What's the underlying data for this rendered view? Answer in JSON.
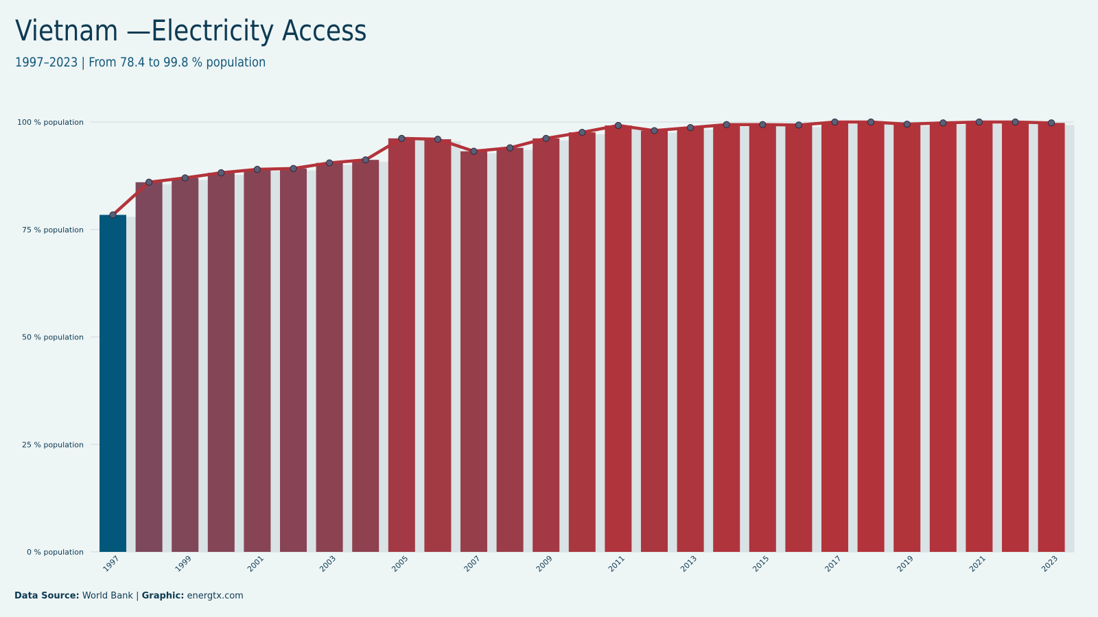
{
  "header": {
    "title": "Vietnam —Electricity Access",
    "subtitle": "1997–2023 | From 78.4 to 99.8 % population"
  },
  "footer": {
    "source_label": "Data Source:",
    "source_value": "World Bank",
    "separator": "|",
    "graphic_label": "Graphic:",
    "graphic_value": "energtx.com"
  },
  "colors": {
    "background": "#eef5f5",
    "first_bar": "#02577a",
    "high_bar": "#b3333a",
    "line": "#b3333a",
    "shadow_bar": "#d9e2e5",
    "grid": "#cfdadd",
    "marker_fill": "#5b5f78",
    "text": "#0c3a52"
  },
  "chart_data": {
    "type": "bar",
    "overlay": "line with circle markers",
    "x": [
      1997,
      1998,
      1999,
      2000,
      2001,
      2002,
      2003,
      2004,
      2005,
      2006,
      2007,
      2008,
      2009,
      2010,
      2011,
      2012,
      2013,
      2014,
      2015,
      2016,
      2017,
      2018,
      2019,
      2020,
      2021,
      2022,
      2023
    ],
    "values": [
      78.4,
      86.0,
      87.0,
      88.2,
      89.0,
      89.2,
      90.5,
      91.2,
      96.2,
      96.0,
      93.2,
      94.0,
      96.2,
      97.6,
      99.2,
      98.0,
      98.7,
      99.4,
      99.4,
      99.3,
      100.0,
      100.0,
      99.5,
      99.8,
      100.0,
      100.0,
      99.8
    ],
    "x_tick_labels": [
      "1997",
      "1999",
      "2001",
      "2003",
      "2005",
      "2007",
      "2009",
      "2011",
      "2013",
      "2015",
      "2017",
      "2019",
      "2021",
      "2023"
    ],
    "y_ticks": [
      0,
      25,
      50,
      75,
      100
    ],
    "y_tick_labels": [
      "0 % population",
      "25 % population",
      "50 % population",
      "75 % population",
      "100 % population"
    ],
    "ylim": [
      0,
      100
    ],
    "title": "Vietnam —Electricity Access",
    "subtitle": "1997–2023 | From 78.4 to 99.8 % population",
    "xlabel": "",
    "ylabel": "",
    "grid": true,
    "legend": "none"
  }
}
